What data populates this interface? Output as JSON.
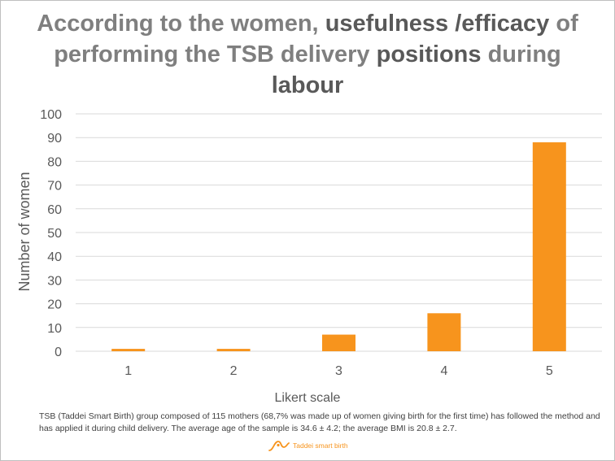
{
  "title": {
    "part1": "According to the women, ",
    "bold1": "usefulness /efficacy",
    "part2": " of performing the TSB delivery ",
    "bold2": "positions",
    "part3": " during ",
    "bold3": "labour"
  },
  "footnote": "TSB (Taddei Smart Birth) group composed of 115 mothers (68,7% was made up of women giving birth for the first time) has followed the method and has applied it during child delivery. The average age of the sample is 34.6 ± 4.2; the average BMI is 20.8 ± 2.7.",
  "logo": {
    "text": "Taddei smart birth",
    "icon": "taddei-logo-icon",
    "color": "#f7941d"
  },
  "chart_data": {
    "type": "bar",
    "title": "According to the women, usefulness /efficacy of performing the TSB delivery positions during labour",
    "categories": [
      "1",
      "2",
      "3",
      "4",
      "5"
    ],
    "values": [
      1,
      1,
      7,
      16,
      88
    ],
    "xlabel": "Likert scale",
    "ylabel": "Number of women",
    "ylim": [
      0,
      100
    ],
    "yticks": [
      0,
      10,
      20,
      30,
      40,
      50,
      60,
      70,
      80,
      90,
      100
    ],
    "grid": true,
    "bar_color": "#f7941d",
    "grid_color": "#d9d9d9"
  }
}
